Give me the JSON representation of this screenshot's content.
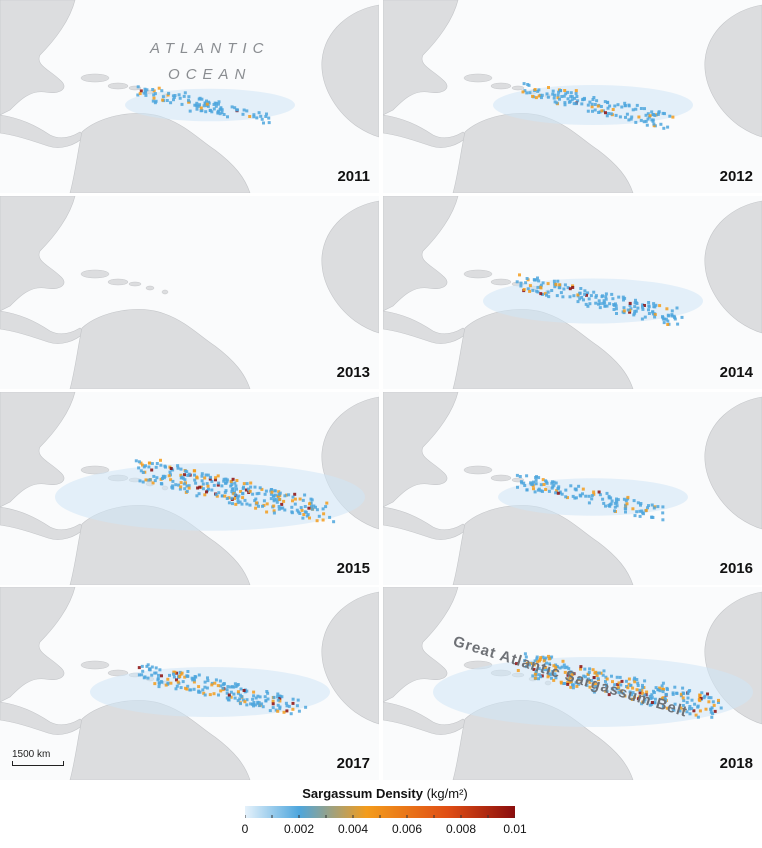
{
  "panels": [
    {
      "year": "2011",
      "intensity": 0.25
    },
    {
      "year": "2012",
      "intensity": 0.4
    },
    {
      "year": "2013",
      "intensity": 0.02
    },
    {
      "year": "2014",
      "intensity": 0.5
    },
    {
      "year": "2015",
      "intensity": 0.95
    },
    {
      "year": "2016",
      "intensity": 0.35
    },
    {
      "year": "2017",
      "intensity": 0.6
    },
    {
      "year": "2018",
      "intensity": 1.0
    }
  ],
  "labels": {
    "ocean_line1": "ATLANTIC",
    "ocean_line2": "OCEAN",
    "belt": "Great Atlantic Sargassum Belt",
    "scale": "1500 km"
  },
  "legend": {
    "title": "Sargassum Density",
    "unit": "(kg/m²)",
    "ticks": [
      "0",
      "0.002",
      "0.004",
      "0.006",
      "0.008",
      "0.01"
    ],
    "colors": [
      "#e6f2fb",
      "#4ea6dd",
      "#f39c1c",
      "#e04e14",
      "#8a0d0d"
    ]
  },
  "colors": {
    "land": "#dcdddf",
    "ocean": "#fafbfc",
    "low_density": "#4ea6dd",
    "mid_density": "#f39c1c",
    "high_density": "#8a0d0d"
  }
}
